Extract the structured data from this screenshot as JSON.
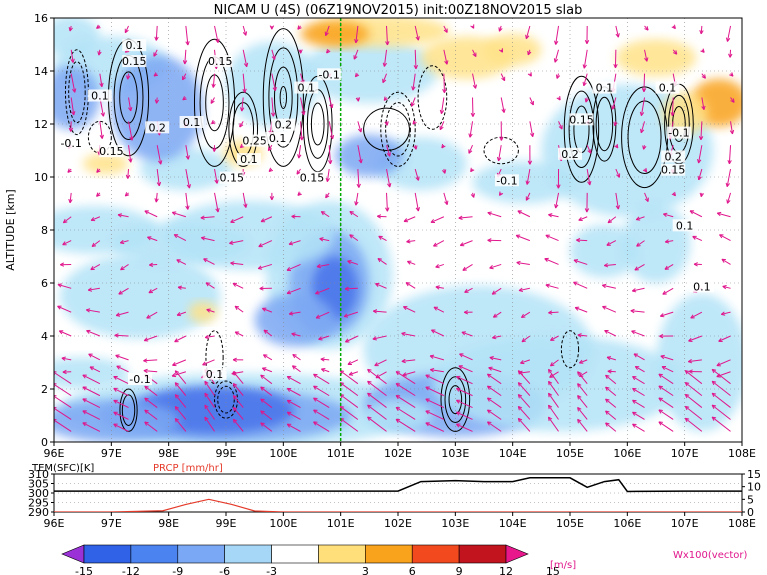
{
  "chart_data": [
    {
      "type": "heatmap",
      "title": "NICAM U (4S) (06Z19NOV2015) init:00Z18NOV2015 slab",
      "ylabel": "ALTITUDE [km]",
      "xlim": [
        96,
        108
      ],
      "ylim": [
        0,
        16
      ],
      "x_ticks": [
        "96E",
        "97E",
        "98E",
        "99E",
        "100E",
        "101E",
        "102E",
        "103E",
        "104E",
        "105E",
        "106E",
        "107E",
        "108E"
      ],
      "y_ticks": [
        "0",
        "2",
        "4",
        "6",
        "8",
        "10",
        "12",
        "14",
        "16"
      ],
      "grid": true,
      "marker_line_x": 101.0,
      "contour_labels": [
        "0.1",
        "0.15",
        "0.15",
        "0.1",
        "0.2",
        "0.1",
        "0.25",
        "0.1",
        "0.15",
        "-0.1",
        "0.15",
        "0.2",
        "0.1",
        "0.1",
        "-0.1",
        "0.15",
        "0.1",
        "0.15",
        "-0.1",
        "0.2",
        "0.1",
        "0.2",
        "0.15",
        "0.1",
        "0.1",
        "-0.1",
        "-0.1",
        "0.1"
      ],
      "colorbar": {
        "ticks": [
          "-15",
          "-12",
          "-9",
          "-6",
          "-3",
          "3",
          "6",
          "9",
          "12",
          "15"
        ],
        "unit": "[m/s]",
        "colors": [
          "#9a32d8",
          "#2f62e6",
          "#4b84f0",
          "#7aa8f4",
          "#a6d7f7",
          "#ffffff",
          "#ffdf7a",
          "#f9a21c",
          "#f24a1e",
          "#c2141e",
          "#e8188c"
        ]
      },
      "vector_label": "Wx100(vector)",
      "shading_colors": {
        "strong_neg": "#4b76ea",
        "neg": "#7ba7f3",
        "weak_neg": "#b3e3f7",
        "pos": "#ffe288",
        "strong_pos": "#f9a21c"
      },
      "vector_color": "#e0168c"
    },
    {
      "type": "line",
      "ylabel_left": "TEM(SFC)[K]",
      "ylabel_right": "PRCP [mm/hr]",
      "left_ticks": [
        "310",
        "305",
        "300",
        "295",
        "290"
      ],
      "right_ticks": [
        "15",
        "10",
        "5",
        "0"
      ],
      "x_ticks": [
        "96E",
        "97E",
        "98E",
        "99E",
        "100E",
        "101E",
        "102E",
        "103E",
        "104E",
        "105E",
        "106E",
        "107E",
        "108E"
      ],
      "series": [
        {
          "name": "TEM(SFC)[K]",
          "color": "#000000",
          "x": [
            96,
            97,
            98,
            98.7,
            99,
            100,
            101,
            102,
            102.4,
            103,
            103.5,
            104,
            104.3,
            105,
            105.3,
            105.6,
            105.85,
            106,
            107,
            108
          ],
          "y": [
            301,
            301,
            301,
            301,
            301,
            301,
            301,
            301,
            306,
            306.5,
            306,
            306,
            308,
            308,
            303,
            306,
            307,
            300.8,
            301,
            301
          ]
        },
        {
          "name": "PRCP [mm/hr]",
          "color": "#e53a2a",
          "x": [
            96,
            97,
            97.9,
            98.3,
            98.7,
            99.1,
            99.5,
            100,
            101,
            102,
            103,
            104,
            105,
            106,
            107,
            108
          ],
          "y": [
            0,
            0,
            0.5,
            3,
            5,
            3,
            0.4,
            0,
            0,
            0,
            0,
            0,
            0,
            0,
            0,
            0
          ]
        }
      ]
    }
  ]
}
